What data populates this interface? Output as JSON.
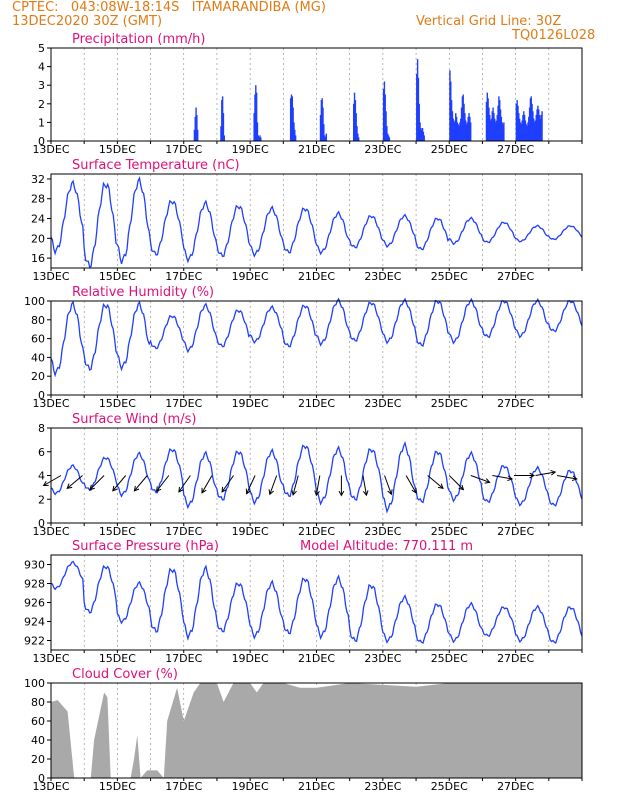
{
  "header": {
    "line1_left": "CPTEC:   043:08W-18:14S   ITAMARANDIBA (MG)",
    "line2_left": "13DEC2020 30Z (GMT)",
    "line1_right": "Vertical Grid Line: 30Z",
    "line2_right": "TQ0126L028"
  },
  "colors": {
    "header": "#e07b16",
    "title": "#e0107a",
    "series": "#1f3fff",
    "cloud": "#a9a9a9",
    "arrow": "#000000"
  },
  "x_tick_labels": [
    "13DEC",
    "15DEC",
    "17DEC",
    "19DEC",
    "21DEC",
    "23DEC",
    "25DEC",
    "27DEC"
  ],
  "chart_data": [
    {
      "type": "bar",
      "title": "Precipitation (mm/h)",
      "ylim": [
        0,
        5
      ],
      "yticks": [
        0,
        1,
        2,
        3,
        4,
        5
      ],
      "grid": "vertical dashed",
      "events": [
        {
          "day": 4.3,
          "values": [
            0.6,
            1.3,
            1.8,
            1.4,
            0.6
          ]
        },
        {
          "day": 5.1,
          "values": [
            0.8,
            2.2,
            2.4,
            1.5,
            0.3
          ]
        },
        {
          "day": 6.1,
          "values": [
            1.5,
            2.5,
            3.0,
            2.6,
            1.0,
            0.3,
            0.2,
            0.3,
            0.2
          ]
        },
        {
          "day": 7.2,
          "values": [
            2.3,
            2.5,
            2.4,
            1.8,
            1.0,
            0.6,
            0.3
          ]
        },
        {
          "day": 8.1,
          "values": [
            1.4,
            2.2,
            2.3,
            1.8,
            0.9,
            0.3,
            0.2,
            0.4
          ]
        },
        {
          "day": 9.1,
          "values": [
            2.0,
            2.6,
            2.2,
            1.5,
            0.8,
            0.4,
            0.2
          ]
        },
        {
          "day": 10.0,
          "values": [
            2.8,
            3.2,
            2.5,
            1.6,
            0.8,
            0.4,
            0.3,
            0.2
          ]
        },
        {
          "day": 11.0,
          "values": [
            3.6,
            4.4,
            3.4,
            2.0,
            1.0,
            0.7,
            0.6,
            0.7,
            0.5,
            0.3
          ]
        },
        {
          "day": 12.0,
          "values": [
            3.8,
            3.2,
            2.2,
            1.6,
            1.2,
            1.0,
            1.1,
            1.5,
            1.3,
            1.0,
            0.9,
            0.8,
            1.0,
            1.2,
            1.8,
            2.4,
            2.5,
            2.0,
            1.5,
            1.1,
            0.9,
            1.0,
            1.3,
            1.5,
            1.3,
            1.0
          ]
        },
        {
          "day": 13.1,
          "values": [
            2.1,
            2.6,
            2.3,
            1.8,
            1.4,
            1.1,
            1.2,
            1.6,
            1.8,
            1.5,
            1.2,
            1.0,
            1.1,
            1.4,
            1.9,
            2.4,
            2.2,
            1.7,
            1.3,
            1.0,
            0.9,
            1.0
          ]
        },
        {
          "day": 14.0,
          "values": [
            2.0,
            2.2,
            1.9,
            1.5,
            1.2,
            1.0,
            0.9,
            1.1,
            1.4,
            1.6,
            1.4,
            1.1,
            0.9,
            0.8,
            1.0,
            1.3,
            1.8,
            2.3,
            2.4,
            2.0,
            1.6,
            1.2,
            1.0,
            1.1,
            1.4,
            1.7,
            1.9,
            1.7,
            1.4,
            1.2,
            1.4,
            1.6
          ]
        }
      ]
    },
    {
      "type": "line",
      "title": "Surface Temperature (nC)",
      "ylim": [
        14,
        33
      ],
      "yticks": [
        16,
        20,
        24,
        28,
        32
      ],
      "grid": "vertical dashed",
      "daily_min": [
        17.5,
        14.5,
        15.5,
        16.8,
        15.8,
        16.5,
        16.8,
        17.2,
        17.2,
        18.2,
        18.5,
        17.8,
        19.0,
        19.2,
        19.4,
        19.8
      ],
      "daily_max": [
        31.0,
        31.0,
        31.5,
        27.5,
        27.0,
        26.5,
        26.0,
        26.0,
        25.0,
        24.5,
        24.5,
        24.0,
        24.0,
        23.2,
        22.5,
        22.5
      ]
    },
    {
      "type": "line",
      "title": "Relative Humidity (%)",
      "ylim": [
        0,
        100
      ],
      "yticks": [
        0,
        20,
        40,
        60,
        80,
        100
      ],
      "grid": "vertical dashed",
      "daily_min": [
        24,
        28,
        30,
        50,
        48,
        52,
        57,
        52,
        55,
        58,
        57,
        53,
        57,
        62,
        63,
        68
      ],
      "daily_max": [
        96,
        96,
        96,
        84,
        95,
        90,
        93,
        95,
        100,
        98,
        100,
        100,
        100,
        100,
        100,
        100
      ]
    },
    {
      "type": "line",
      "title": "Surface Wind (m/s)",
      "ylim": [
        0,
        8
      ],
      "yticks": [
        0,
        2,
        4,
        6,
        8
      ],
      "grid": "vertical dashed",
      "daily_min": [
        2.5,
        2.8,
        2.4,
        2.6,
        1.5,
        2.0,
        1.8,
        2.3,
        1.8,
        2.0,
        1.2,
        1.8,
        2.0,
        1.8,
        1.6,
        1.5
      ],
      "daily_max": [
        4.8,
        5.5,
        5.8,
        6.2,
        5.8,
        6.0,
        6.0,
        6.5,
        6.2,
        6.2,
        6.5,
        6.0,
        5.8,
        4.8,
        4.6,
        4.4
      ],
      "vectors_deg": [
        60,
        50,
        45,
        40,
        40,
        38,
        35,
        30,
        35,
        25,
        20,
        15,
        10,
        0,
        -10,
        -20,
        -30,
        -50,
        -45,
        -70,
        -80,
        -90,
        -100,
        -80
      ]
    },
    {
      "type": "line",
      "title": "Surface Pressure (hPa)",
      "annotation": "Model Altitude: 770.111  m",
      "ylim": [
        921,
        931
      ],
      "yticks": [
        922,
        924,
        926,
        928,
        930
      ],
      "grid": "vertical dashed",
      "daily_min": [
        927.5,
        925.0,
        924.0,
        923.0,
        922.5,
        923.0,
        922.5,
        922.8,
        922.5,
        922.0,
        922.0,
        921.8,
        922.0,
        922.5,
        922.0,
        921.8
      ],
      "daily_max": [
        930.2,
        929.8,
        928.0,
        929.5,
        929.5,
        928.0,
        928.0,
        928.5,
        928.5,
        927.8,
        926.5,
        925.8,
        925.8,
        925.5,
        925.5,
        925.5
      ]
    },
    {
      "type": "area",
      "title": "Cloud Cover (%)",
      "ylim": [
        0,
        100
      ],
      "yticks": [
        0,
        20,
        40,
        60,
        80,
        100
      ],
      "grid": "vertical dashed",
      "profile": [
        [
          0,
          80
        ],
        [
          0.2,
          82
        ],
        [
          0.5,
          70
        ],
        [
          0.7,
          0
        ],
        [
          1.2,
          0
        ],
        [
          1.3,
          40
        ],
        [
          1.6,
          90
        ],
        [
          1.7,
          85
        ],
        [
          1.8,
          0
        ],
        [
          2.4,
          0
        ],
        [
          2.5,
          20
        ],
        [
          2.6,
          45
        ],
        [
          2.7,
          0
        ],
        [
          2.9,
          8
        ],
        [
          3.2,
          8
        ],
        [
          3.4,
          0
        ],
        [
          3.5,
          60
        ],
        [
          3.8,
          95
        ],
        [
          4.0,
          60
        ],
        [
          4.3,
          90
        ],
        [
          4.5,
          100
        ],
        [
          5.0,
          100
        ],
        [
          5.2,
          80
        ],
        [
          5.5,
          100
        ],
        [
          6.0,
          100
        ],
        [
          6.2,
          90
        ],
        [
          6.4,
          100
        ],
        [
          7.0,
          100
        ],
        [
          7.5,
          95
        ],
        [
          8.0,
          95
        ],
        [
          9.0,
          100
        ],
        [
          10.0,
          98
        ],
        [
          11.0,
          96
        ],
        [
          12.0,
          100
        ],
        [
          16.0,
          100
        ]
      ]
    }
  ],
  "panels": [
    {
      "title": "Precipitation (mm/h)",
      "extra": ""
    },
    {
      "title": "Surface Temperature (nC)",
      "extra": ""
    },
    {
      "title": "Relative Humidity (%)",
      "extra": ""
    },
    {
      "title": "Surface Wind (m/s)",
      "extra": ""
    },
    {
      "title": "Surface Pressure (hPa)",
      "extra": "Model Altitude: 770.111  m"
    },
    {
      "title": "Cloud Cover (%)",
      "extra": ""
    }
  ]
}
